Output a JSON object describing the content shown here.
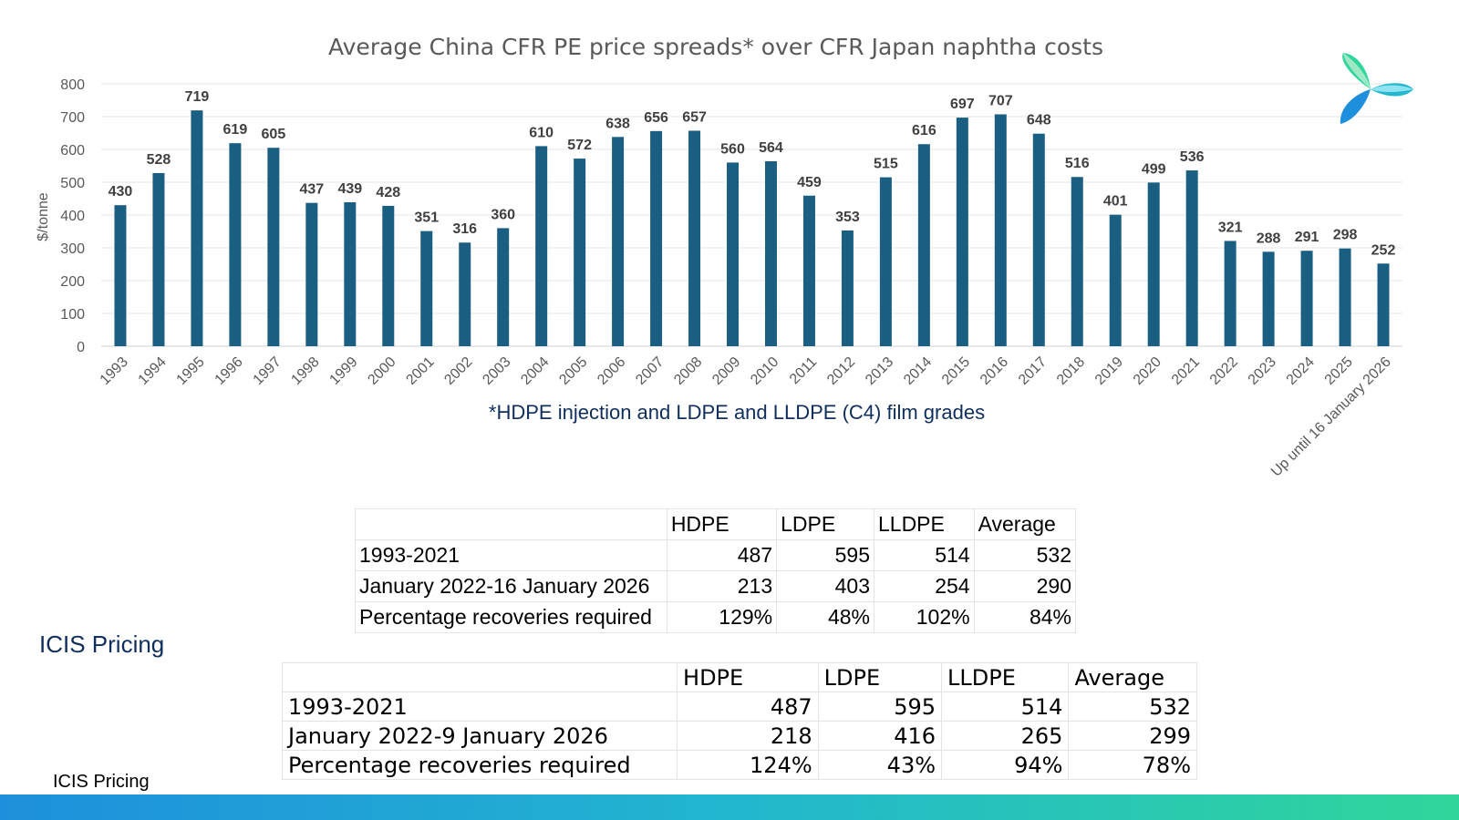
{
  "chart_data": {
    "type": "bar",
    "title": "Average China CFR PE price spreads* over CFR Japan naphtha costs",
    "subtitle": "*HDPE injection and LDPE and LLDPE (C4) film grades",
    "xlabel": "",
    "ylabel": "$/tonne",
    "ylim": [
      0,
      800
    ],
    "yticks": [
      0,
      100,
      200,
      300,
      400,
      500,
      600,
      700,
      800
    ],
    "grid": true,
    "bar_color": "#1a5f82",
    "categories": [
      "1993",
      "1994",
      "1995",
      "1996",
      "1997",
      "1998",
      "1999",
      "2000",
      "2001",
      "2002",
      "2003",
      "2004",
      "2005",
      "2006",
      "2007",
      "2008",
      "2009",
      "2010",
      "2011",
      "2012",
      "2013",
      "2014",
      "2015",
      "2016",
      "2017",
      "2018",
      "2019",
      "2020",
      "2021",
      "2022",
      "2023",
      "2024",
      "2025",
      "Up until 16 January 2026"
    ],
    "values": [
      430,
      528,
      719,
      619,
      605,
      437,
      439,
      428,
      351,
      316,
      360,
      610,
      572,
      638,
      656,
      657,
      560,
      564,
      459,
      353,
      515,
      616,
      697,
      707,
      648,
      516,
      401,
      499,
      536,
      321,
      288,
      291,
      298,
      252
    ]
  },
  "table1": {
    "headers": [
      "",
      "HDPE",
      "LDPE",
      "LLDPE",
      "Average"
    ],
    "rows": [
      [
        "1993-2021",
        "487",
        "595",
        "514",
        "532"
      ],
      [
        "January 2022-16 January 2026",
        "213",
        "403",
        "254",
        "290"
      ],
      [
        "Percentage recoveries required",
        "129%",
        "48%",
        "102%",
        "84%"
      ]
    ]
  },
  "table2": {
    "headers": [
      "",
      "HDPE",
      "LDPE",
      "LLDPE",
      "Average"
    ],
    "rows": [
      [
        "1993-2021",
        "487",
        "595",
        "514",
        "532"
      ],
      [
        "January 2022-9 January 2026",
        "218",
        "416",
        "265",
        "299"
      ],
      [
        "Percentage recoveries required",
        "124%",
        "43%",
        "94%",
        "78%"
      ]
    ]
  },
  "source_label_large": "ICIS Pricing",
  "source_label_small": "ICIS Pricing",
  "logo_icon": "tri-petal-logo-icon"
}
